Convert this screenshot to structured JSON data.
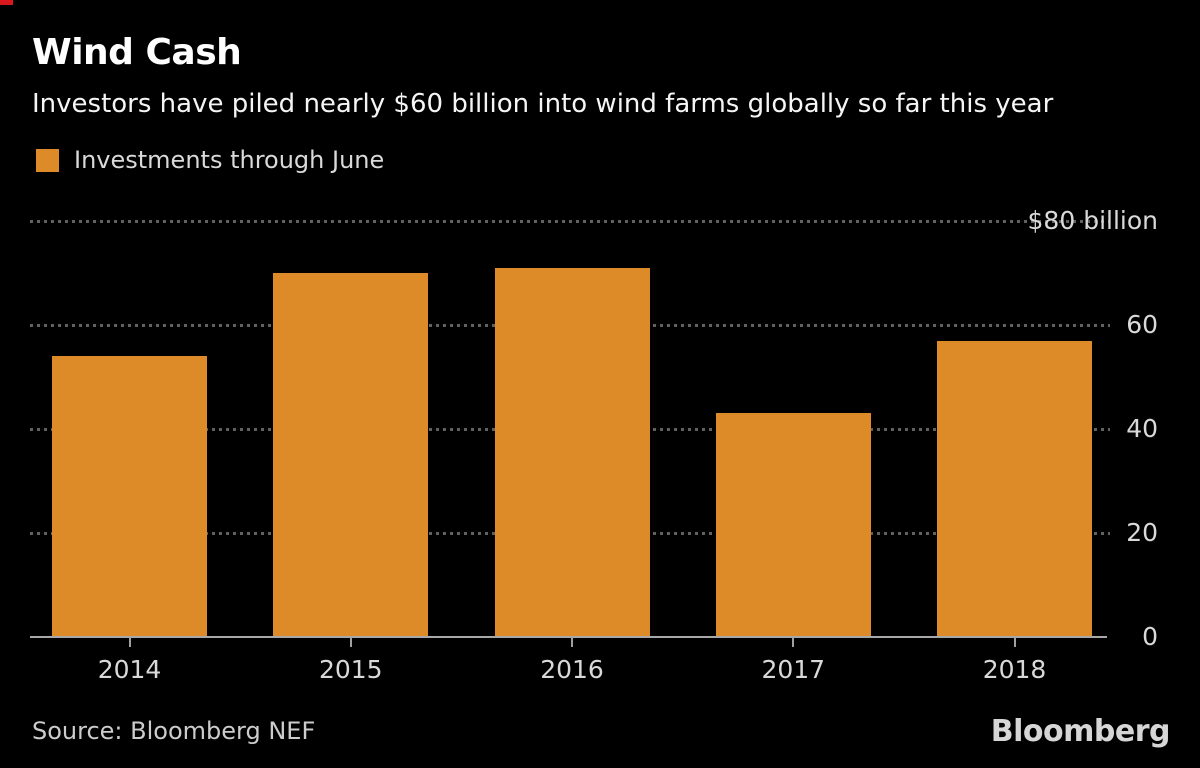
{
  "header": {
    "title": "Wind Cash",
    "subtitle": "Investors have piled nearly $60 billion into wind farms globally so far this year"
  },
  "legend": {
    "label": "Investments through June"
  },
  "chart_data": {
    "type": "bar",
    "categories": [
      "2014",
      "2015",
      "2016",
      "2017",
      "2018"
    ],
    "values": [
      54,
      70,
      71,
      43,
      57
    ],
    "series_name": "Investments through June",
    "title": "Wind Cash",
    "subtitle": "Investors have piled nearly $60 billion into wind farms globally so far this year",
    "unit": "$ billion",
    "ylim": [
      0,
      80
    ],
    "ytick_values": [
      80,
      60,
      40,
      20,
      0
    ],
    "ytick_labels": [
      "$80 billion",
      "60",
      "40",
      "20",
      "0"
    ],
    "ytick_side": "right",
    "grid": "dotted-horizontal",
    "legend_position": "top-left"
  },
  "footer": {
    "source": "Source: Bloomberg NEF",
    "brand": "Bloomberg"
  },
  "colors": {
    "background": "#000000",
    "bar": "#dd8a28",
    "accent_red": "#d8181c",
    "text_primary": "#ffffff",
    "text_secondary": "#d9d9d9",
    "gridline": "#616161",
    "axis": "#a8a8a8"
  }
}
